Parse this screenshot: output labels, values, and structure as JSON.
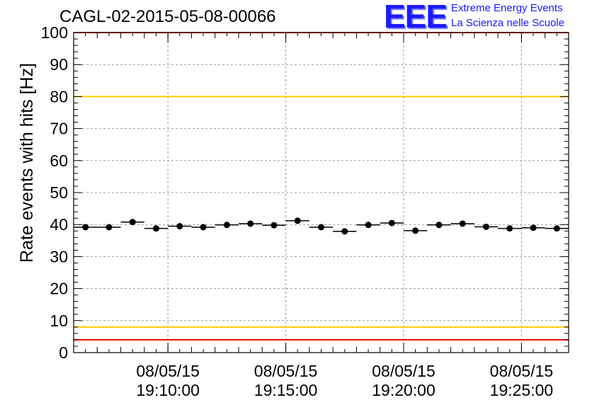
{
  "header": {
    "title": "CAGL-02-2015-05-08-00066",
    "logo_text": "EEE",
    "logo_line1": "Extreme Energy Events",
    "logo_line2": "La Scienza nelle Scuole"
  },
  "colors": {
    "red_line": "#ff0000",
    "yellow_line": "#ffcc00",
    "logo_blue": "#1a1aff"
  },
  "chart_data": {
    "type": "scatter",
    "title": "CAGL-02-2015-05-08-00066",
    "ylabel": "Rate events with hits [Hz]",
    "xlabel": "",
    "ylim": [
      0,
      100
    ],
    "yticks": [
      0,
      10,
      20,
      30,
      40,
      50,
      60,
      70,
      80,
      90,
      100
    ],
    "xticks": [
      {
        "x": "19:10:00",
        "label_date": "08/05/15",
        "label_time": "19:10:00"
      },
      {
        "x": "19:15:00",
        "label_date": "08/05/15",
        "label_time": "19:15:00"
      },
      {
        "x": "19:20:00",
        "label_date": "08/05/15",
        "label_time": "19:20:00"
      },
      {
        "x": "19:25:00",
        "label_date": "08/05/15",
        "label_time": "19:25:00"
      }
    ],
    "xlim": [
      "19:06:00",
      "19:27:00"
    ],
    "grid": true,
    "reference_lines": [
      {
        "y": 100,
        "color": "#ff0000"
      },
      {
        "y": 80,
        "color": "#ffcc00"
      },
      {
        "y": 8,
        "color": "#ffcc00"
      },
      {
        "y": 4,
        "color": "#ff0000"
      }
    ],
    "series": [
      {
        "x": [
          "19:06:30",
          "19:07:30",
          "19:08:30",
          "19:09:30",
          "19:10:30",
          "19:11:30",
          "19:12:30",
          "19:13:30",
          "19:14:30",
          "19:15:30",
          "19:16:30",
          "19:17:30",
          "19:18:30",
          "19:19:30",
          "19:20:30",
          "19:21:30",
          "19:22:30",
          "19:23:30",
          "19:24:30",
          "19:25:30",
          "19:26:30"
        ],
        "values": [
          39.2,
          39.2,
          40.8,
          38.8,
          39.5,
          39.2,
          39.9,
          40.3,
          39.8,
          41.2,
          39.2,
          37.9,
          39.9,
          40.5,
          38.1,
          39.9,
          40.3,
          39.3,
          38.8,
          39.0,
          38.8
        ],
        "bin_width_minutes": 1
      }
    ]
  }
}
